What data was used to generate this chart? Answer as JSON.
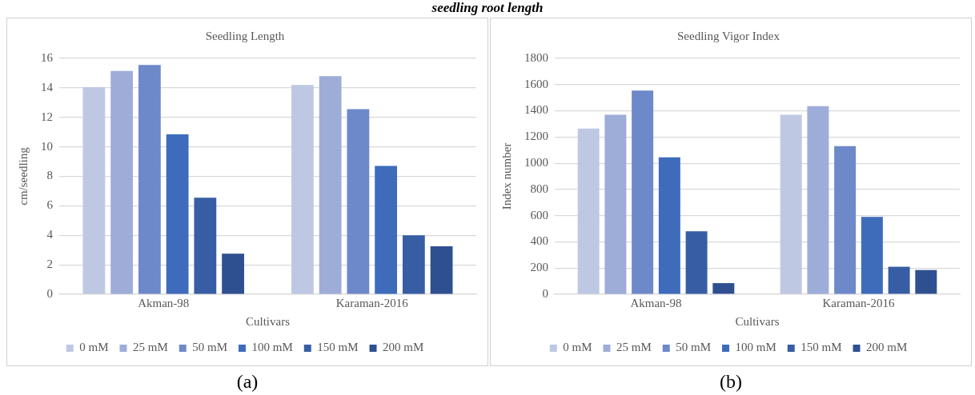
{
  "chart_data": [
    {
      "type": "bar",
      "title": "Seedling Length",
      "xlabel": "Cultivars",
      "ylabel": "cm/seedling",
      "categories": [
        "Akman-98",
        "Karaman-2016"
      ],
      "series": [
        {
          "name": "0 mM",
          "color": "#bfc8e3",
          "values": [
            14.05,
            14.2
          ]
        },
        {
          "name": "25 mM",
          "color": "#9eadd8",
          "values": [
            15.15,
            14.8
          ]
        },
        {
          "name": "50 mM",
          "color": "#6e89c9",
          "values": [
            15.55,
            12.55
          ]
        },
        {
          "name": "100 mM",
          "color": "#3e6cbb",
          "values": [
            10.85,
            8.7
          ]
        },
        {
          "name": "150 mM",
          "color": "#375ea4",
          "values": [
            6.55,
            4.0
          ]
        },
        {
          "name": "200 mM",
          "color": "#2f5090",
          "values": [
            2.75,
            3.25
          ]
        }
      ],
      "ylim": [
        0,
        16
      ],
      "yticks": [
        0,
        2,
        4,
        6,
        8,
        10,
        12,
        14,
        16
      ],
      "grid": "y",
      "legend": "bottom",
      "annotations": [
        "seedling root length",
        "(a)"
      ]
    },
    {
      "type": "bar",
      "title": "Seedling Vigor Index",
      "xlabel": "Cultivars",
      "ylabel": "Index number",
      "categories": [
        "Akman-98",
        "Karaman-2016"
      ],
      "series": [
        {
          "name": "0 mM",
          "color": "#bfc8e3",
          "values": [
            1265,
            1370
          ]
        },
        {
          "name": "25 mM",
          "color": "#9eadd8",
          "values": [
            1370,
            1435
          ]
        },
        {
          "name": "50 mM",
          "color": "#6e89c9",
          "values": [
            1555,
            1130
          ]
        },
        {
          "name": "100 mM",
          "color": "#3e6cbb",
          "values": [
            1045,
            590
          ]
        },
        {
          "name": "150 mM",
          "color": "#375ea4",
          "values": [
            480,
            210
          ]
        },
        {
          "name": "200 mM",
          "color": "#2f5090",
          "values": [
            85,
            185
          ]
        }
      ],
      "ylim": [
        0,
        1800
      ],
      "yticks": [
        0,
        200,
        400,
        600,
        800,
        1000,
        1200,
        1400,
        1600,
        1800
      ],
      "grid": "y",
      "legend": "bottom",
      "annotations": [
        "(b)"
      ]
    }
  ]
}
